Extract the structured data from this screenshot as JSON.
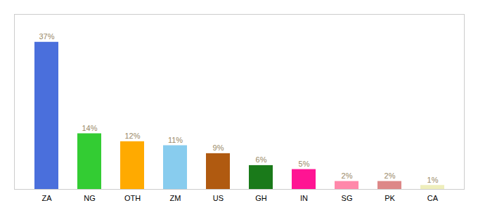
{
  "chart_data": {
    "type": "bar",
    "categories": [
      "ZA",
      "NG",
      "OTH",
      "ZM",
      "US",
      "GH",
      "IN",
      "SG",
      "PK",
      "CA"
    ],
    "values": [
      37,
      14,
      12,
      11,
      9,
      6,
      5,
      2,
      2,
      1
    ],
    "value_labels": [
      "37%",
      "14%",
      "12%",
      "11%",
      "9%",
      "6%",
      "5%",
      "2%",
      "2%",
      "1%"
    ],
    "colors": [
      "#4a6fdc",
      "#33cc33",
      "#ffaa00",
      "#88ccee",
      "#b05a10",
      "#1a7a1a",
      "#ff1493",
      "#ff88aa",
      "#dd8888",
      "#eeeebb"
    ],
    "ylim": [
      0,
      44
    ],
    "grid": false,
    "data_labels": true,
    "tick_labels": "x"
  }
}
